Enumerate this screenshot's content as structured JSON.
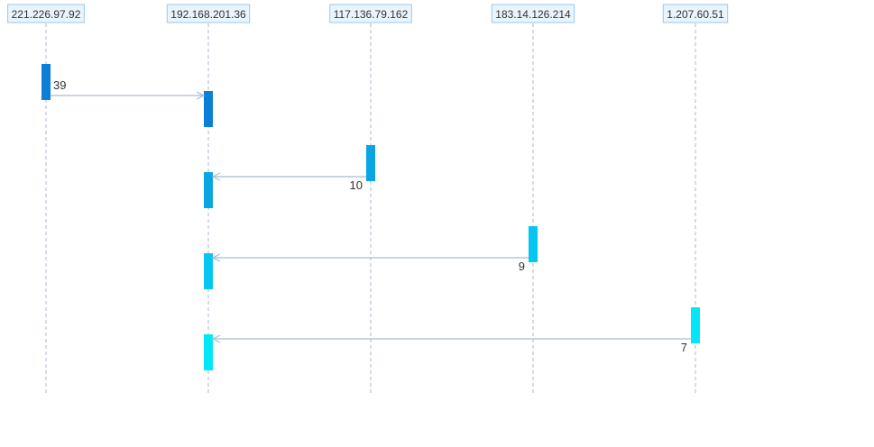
{
  "nodes": [
    {
      "id": "n1",
      "label": "221.226.97.92"
    },
    {
      "id": "n2",
      "label": "192.168.201.36"
    },
    {
      "id": "n3",
      "label": "117.136.79.162"
    },
    {
      "id": "n4",
      "label": "183.14.126.214"
    },
    {
      "id": "n5",
      "label": "1.207.60.51"
    }
  ],
  "messages": [
    {
      "from": "n1",
      "to": "n2",
      "label": "39",
      "color": "#0b7fd6"
    },
    {
      "from": "n3",
      "to": "n2",
      "label": "10",
      "color": "#0aa6e4"
    },
    {
      "from": "n4",
      "to": "n2",
      "label": "9",
      "color": "#05c6f0"
    },
    {
      "from": "n5",
      "to": "n2",
      "label": "7",
      "color": "#04e6f8"
    }
  ]
}
